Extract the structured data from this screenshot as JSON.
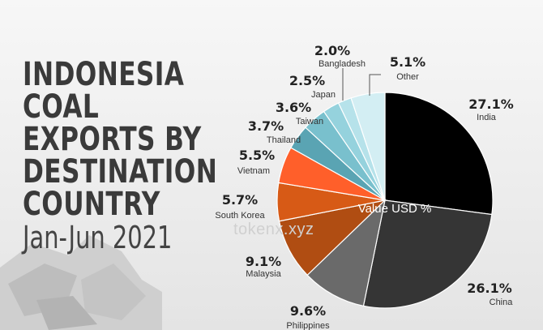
{
  "title_lines": [
    "INDONESIA",
    "COAL",
    "EXPORTS BY",
    "DESTINATION",
    "COUNTRY"
  ],
  "subtitle": "Jan-Jun 2021",
  "watermark": "tokenx.xyz",
  "chart_data": {
    "type": "pie",
    "center_label": "Value USD %",
    "slices": [
      {
        "label": "India",
        "value": 27.1,
        "display": "27.1%",
        "color": "#000000"
      },
      {
        "label": "China",
        "value": 26.1,
        "display": "26.1%",
        "color": "#353535"
      },
      {
        "label": "Philippines",
        "value": 9.6,
        "display": "9.6%",
        "color": "#6a6a6a"
      },
      {
        "label": "Malaysia",
        "value": 9.1,
        "display": "9.1%",
        "color": "#b04d12"
      },
      {
        "label": "South Korea",
        "value": 5.7,
        "display": "5.7%",
        "color": "#d75a16"
      },
      {
        "label": "Vietnam",
        "value": 5.5,
        "display": "5.5%",
        "color": "#ff5f2a"
      },
      {
        "label": "Thailand",
        "value": 3.7,
        "display": "3.7%",
        "color": "#5aa4b3"
      },
      {
        "label": "Taiwan",
        "value": 3.6,
        "display": "3.6%",
        "color": "#79c0cd"
      },
      {
        "label": "Japan",
        "value": 2.5,
        "display": "2.5%",
        "color": "#95d2dd"
      },
      {
        "label": "Bangladesh",
        "value": 2.0,
        "display": "2.0%",
        "color": "#b6e2ea"
      },
      {
        "label": "Other",
        "value": 5.1,
        "display": "5.1%",
        "color": "#d3eef3"
      }
    ]
  }
}
